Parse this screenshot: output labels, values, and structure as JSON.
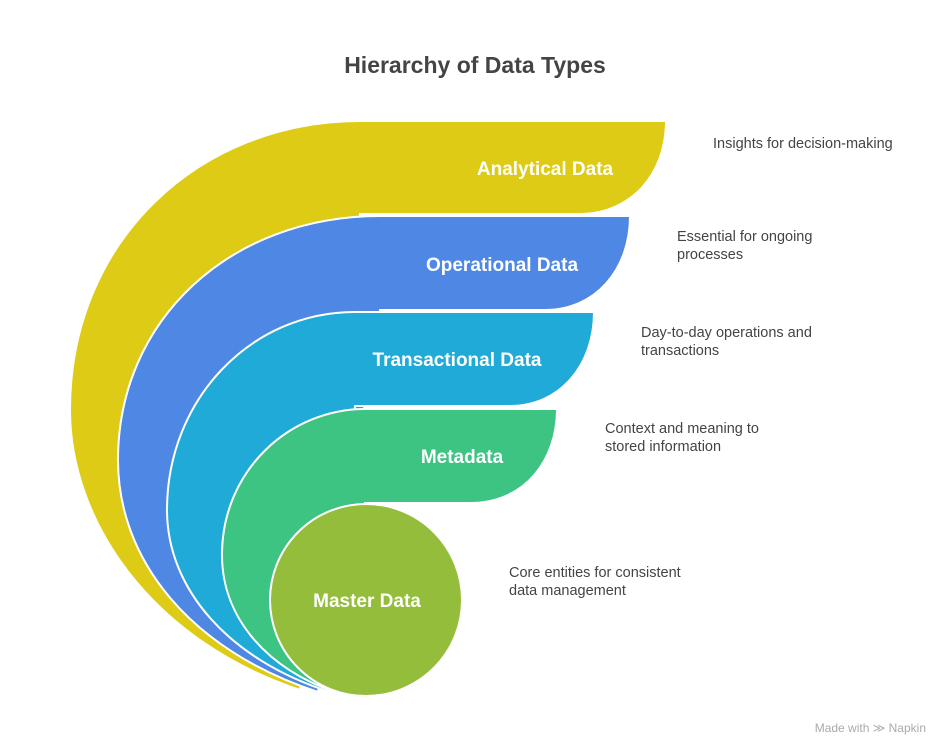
{
  "title": "Hierarchy of Data Types",
  "layers": [
    {
      "label": "Analytical Data",
      "description": "Insights for decision-making",
      "color": "#DECB16"
    },
    {
      "label": "Operational Data",
      "description": "Essential for ongoing processes",
      "color": "#4E88E4"
    },
    {
      "label": "Transactional Data",
      "description": "Day-to-day operations and transactions",
      "color": "#20AAD8"
    },
    {
      "label": "Metadata",
      "description": "Context and meaning to stored information",
      "color": "#3EC482"
    },
    {
      "label": "Master Data",
      "description": "Core entities for consistent data management",
      "color": "#93BD3A"
    }
  ],
  "footer": {
    "text": "Made with",
    "brand": "Napkin",
    "icon": "napkin-logo-icon"
  }
}
